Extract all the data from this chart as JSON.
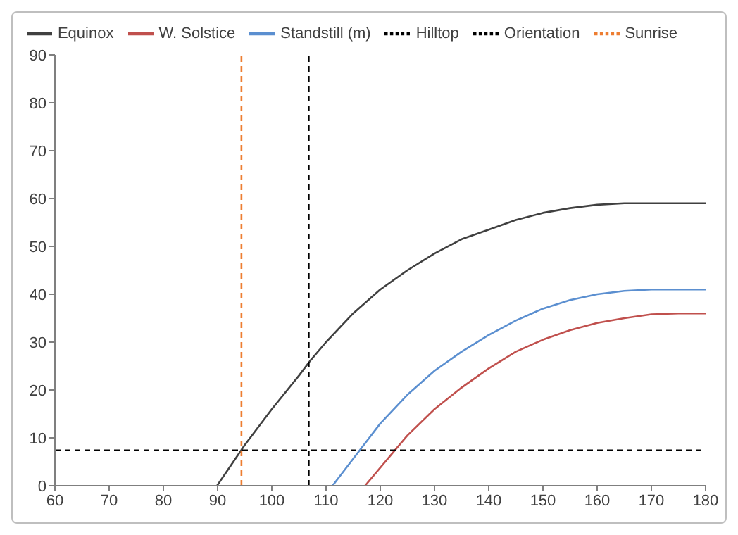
{
  "chart_data": {
    "type": "line",
    "xlim": [
      60,
      180
    ],
    "xticks": [
      60,
      70,
      80,
      90,
      100,
      110,
      120,
      130,
      140,
      150,
      160,
      170,
      180
    ],
    "ylim": [
      0,
      90
    ],
    "yticks": [
      0,
      10,
      20,
      30,
      40,
      50,
      60,
      70,
      80,
      90
    ],
    "grid": false,
    "legend": "top",
    "marker": "none",
    "series": [
      {
        "name": "Equinox",
        "color": "#404040",
        "line_style": "solid",
        "x": [
          89.9,
          95,
          100,
          105,
          107,
          110,
          115,
          120,
          125,
          130,
          135,
          140,
          145,
          150,
          155,
          160,
          165,
          180
        ],
        "values": [
          0,
          8.5,
          16,
          23,
          26,
          30,
          36,
          41,
          45,
          48.5,
          51.5,
          53.5,
          55.5,
          57,
          58,
          58.7,
          59,
          59
        ]
      },
      {
        "name": "W. Solstice",
        "color": "#c0504d",
        "line_style": "solid",
        "x": [
          117.2,
          122.7,
          125,
          130,
          135,
          140,
          145,
          150,
          155,
          160,
          165,
          170,
          175,
          180
        ],
        "values": [
          0,
          7.4,
          10.5,
          16,
          20.5,
          24.5,
          28,
          30.5,
          32.5,
          34,
          35,
          35.8,
          36,
          36
        ]
      },
      {
        "name": "Standstill (m)",
        "color": "#5b8fd0",
        "line_style": "solid",
        "x": [
          111.2,
          116.2,
          120,
          125,
          130,
          135,
          140,
          145,
          150,
          155,
          160,
          165,
          170,
          180
        ],
        "values": [
          0,
          7.4,
          13,
          19,
          24,
          28,
          31.5,
          34.5,
          37,
          38.8,
          40,
          40.7,
          41,
          41
        ]
      },
      {
        "name": "Hilltop",
        "color": "#000000",
        "line_style": "dashed",
        "x": [
          60,
          180
        ],
        "values": [
          7.4,
          7.4
        ]
      },
      {
        "name": "Orientation",
        "color": "#000000",
        "line_style": "dashed",
        "x": [
          106.8,
          106.8
        ],
        "values": [
          0,
          90
        ]
      },
      {
        "name": "Sunrise",
        "color": "#ed7d31",
        "line_style": "dashed",
        "x": [
          94.4,
          94.4
        ],
        "values": [
          0,
          90
        ]
      }
    ]
  }
}
